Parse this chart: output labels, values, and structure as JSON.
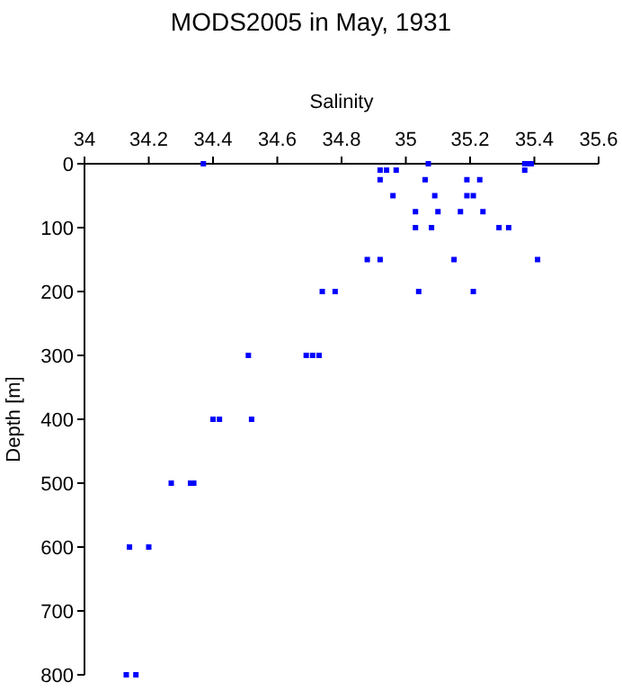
{
  "chart_data": {
    "type": "scatter",
    "title": "MODS2005 in May, 1931",
    "xlabel": "Salinity",
    "ylabel": "Depth [m]",
    "marker": "square",
    "grid": false,
    "xlim": [
      34,
      35.6
    ],
    "xticks": [
      34,
      34.2,
      34.4,
      34.6,
      34.8,
      35,
      35.2,
      35.4,
      35.6
    ],
    "ylim": [
      800,
      0
    ],
    "yticks": [
      0,
      100,
      200,
      300,
      400,
      500,
      600,
      700,
      800
    ],
    "series": [
      {
        "color": "#0000ff",
        "x": [
          34.37,
          35.07,
          35.37,
          35.38,
          35.39,
          34.92,
          34.94,
          34.97,
          35.37,
          34.92,
          35.06,
          35.19,
          35.23,
          34.96,
          35.09,
          35.19,
          35.21,
          35.03,
          35.1,
          35.17,
          35.24,
          35.03,
          35.08,
          35.29,
          35.32,
          34.88,
          34.92,
          35.15,
          35.41,
          34.74,
          34.78,
          35.04,
          35.21,
          34.51,
          34.69,
          34.71,
          34.73,
          34.4,
          34.42,
          34.52,
          34.27,
          34.33,
          34.34,
          34.14,
          34.2,
          34.13,
          34.16
        ],
        "values": [
          0,
          0,
          0,
          0,
          0,
          10,
          10,
          10,
          10,
          25,
          25,
          25,
          25,
          50,
          50,
          50,
          50,
          75,
          75,
          75,
          75,
          100,
          100,
          100,
          100,
          150,
          150,
          150,
          150,
          200,
          200,
          200,
          200,
          300,
          300,
          300,
          300,
          400,
          400,
          400,
          500,
          500,
          500,
          600,
          600,
          800,
          800
        ]
      }
    ]
  }
}
